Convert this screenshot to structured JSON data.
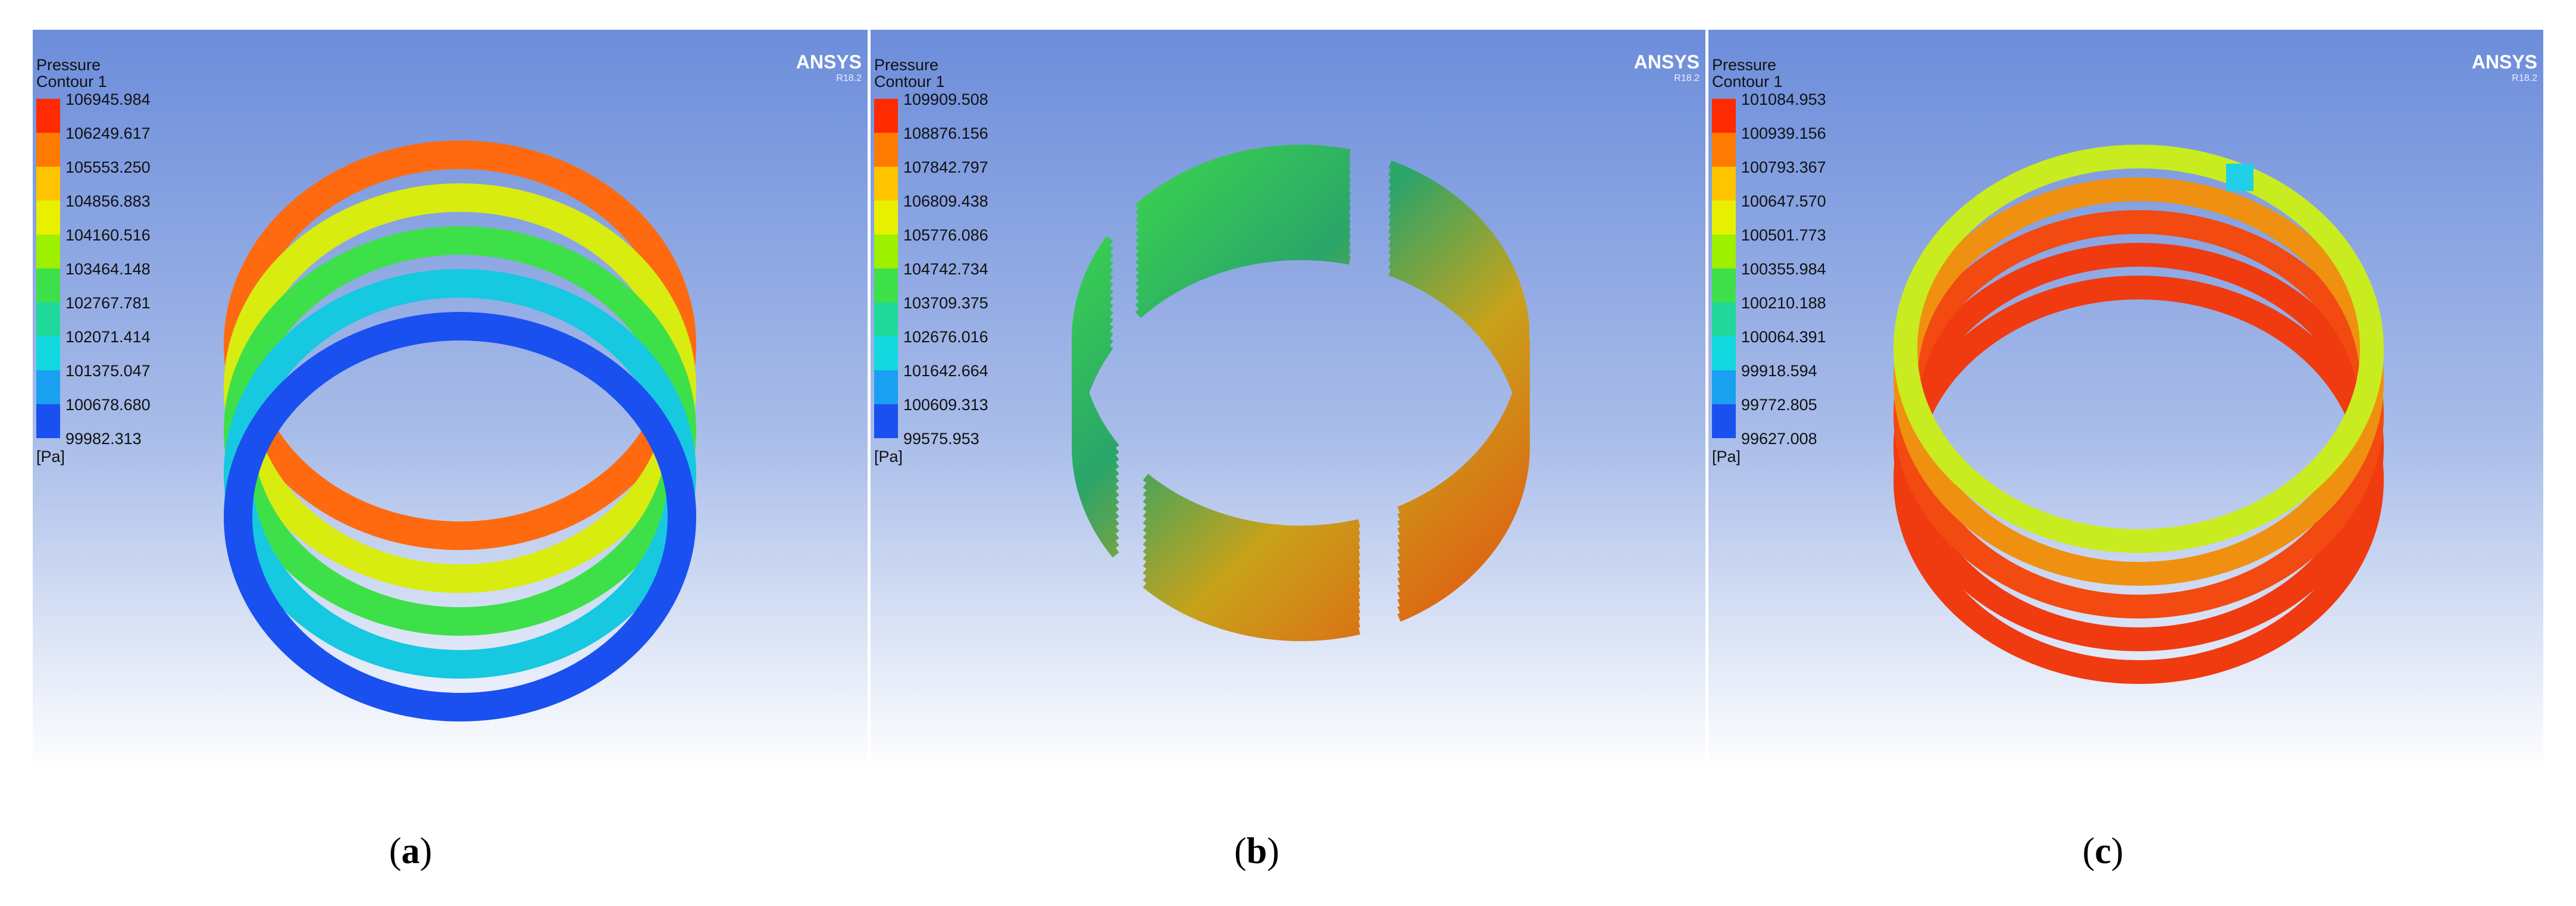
{
  "panels": [
    {
      "legend": {
        "title": "Pressure",
        "subtitle": "Contour 1",
        "values": [
          "106945.984",
          "106249.617",
          "105553.250",
          "104856.883",
          "104160.516",
          "103464.148",
          "102767.781",
          "102071.414",
          "101375.047",
          "100678.680",
          "99982.313"
        ],
        "unit": "[Pa]"
      },
      "brand": "ANSYS",
      "version": "R18.2",
      "caption": [
        "(",
        "a",
        ")"
      ]
    },
    {
      "legend": {
        "title": "Pressure",
        "subtitle": "Contour 1",
        "values": [
          "109909.508",
          "108876.156",
          "107842.797",
          "106809.438",
          "105776.086",
          "104742.734",
          "103709.375",
          "102676.016",
          "101642.664",
          "100609.313",
          "99575.953"
        ],
        "unit": "[Pa]"
      },
      "brand": "ANSYS",
      "version": "R18.2",
      "caption": [
        "(",
        "b",
        ")"
      ]
    },
    {
      "legend": {
        "title": "Pressure",
        "subtitle": "Contour 1",
        "values": [
          "101084.953",
          "100939.156",
          "100793.367",
          "100647.570",
          "100501.773",
          "100355.984",
          "100210.188",
          "100064.391",
          "99918.594",
          "99772.805",
          "99627.008"
        ],
        "unit": "[Pa]"
      },
      "brand": "ANSYS",
      "version": "R18.2",
      "caption": [
        "(",
        "c",
        ")"
      ]
    }
  ]
}
